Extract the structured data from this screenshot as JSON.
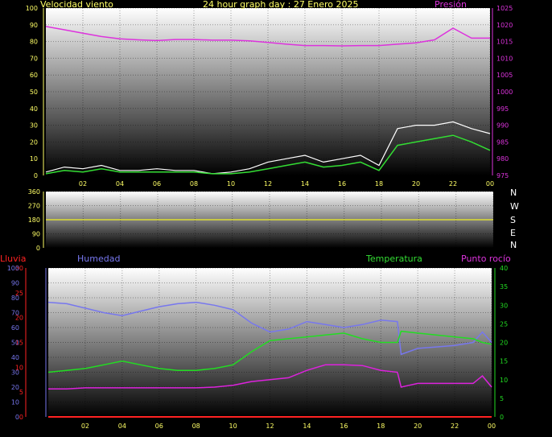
{
  "header": {
    "left_label": "Velocidad viento",
    "title": "24 hour graph day : 27 Enero 2025",
    "right_label": "Presión"
  },
  "compass": [
    "N",
    "W",
    "S",
    "E",
    "N"
  ],
  "bottom_header": {
    "rain": "Lluvia",
    "humidity": "Humedad",
    "temperature": "Temperatura",
    "dewpoint": "Punto rocío"
  },
  "colors": {
    "wind": "#ffffff",
    "wind_avg": "#33dd33",
    "pressure": "#dd33dd",
    "direction": "#dddd33",
    "humidity": "#7777ee",
    "temperature": "#22dd22",
    "dewpoint": "#dd22dd",
    "rain": "#ff2222",
    "header_text": "#ffff66",
    "grid_dot": "#ffff66"
  },
  "chart_data": [
    {
      "type": "line",
      "title": "24 hour graph day : 27 Enero 2025",
      "x_ticks": [
        "02",
        "04",
        "06",
        "08",
        "10",
        "12",
        "14",
        "16",
        "18",
        "20",
        "22",
        "00"
      ],
      "y_left": {
        "label": "Velocidad viento",
        "min": 0,
        "max": 100,
        "ticks": [
          0,
          10,
          20,
          30,
          40,
          50,
          60,
          70,
          80,
          90,
          100
        ]
      },
      "y_right": {
        "label": "Presión",
        "min": 975,
        "max": 1025,
        "ticks": [
          975,
          980,
          985,
          990,
          995,
          1000,
          1005,
          1010,
          1015,
          1020,
          1025
        ]
      },
      "x_hours": [
        0,
        1,
        2,
        3,
        4,
        5,
        6,
        7,
        8,
        9,
        10,
        11,
        12,
        13,
        14,
        15,
        16,
        17,
        18,
        19,
        20,
        21,
        22,
        23,
        24
      ],
      "series": [
        {
          "name": "Velocidad viento",
          "axis": "left",
          "values": [
            2,
            5,
            4,
            6,
            3,
            3,
            4,
            3,
            3,
            1,
            2,
            4,
            8,
            10,
            12,
            8,
            10,
            12,
            6,
            28,
            30,
            30,
            32,
            28,
            25
          ]
        },
        {
          "name": "Velocidad viento media",
          "axis": "left",
          "values": [
            1,
            3,
            2,
            4,
            2,
            2,
            2,
            2,
            2,
            1,
            1,
            2,
            4,
            6,
            8,
            5,
            6,
            8,
            3,
            18,
            20,
            22,
            24,
            20,
            15
          ]
        },
        {
          "name": "Presión",
          "axis": "right",
          "values": [
            1019.5,
            1018.5,
            1017.5,
            1016.5,
            1015.8,
            1015.5,
            1015.3,
            1015.6,
            1015.6,
            1015.4,
            1015.4,
            1015.2,
            1014.7,
            1014.2,
            1013.8,
            1013.8,
            1013.7,
            1013.8,
            1013.8,
            1014.2,
            1014.6,
            1015.5,
            1019.0,
            1016.0,
            1016.0
          ]
        }
      ]
    },
    {
      "type": "line",
      "y_left": {
        "min": 0,
        "max": 360,
        "ticks": [
          0,
          90,
          180,
          270,
          360
        ]
      },
      "series": [
        {
          "name": "Dirección viento",
          "values": [
            180,
            180
          ]
        }
      ]
    },
    {
      "type": "line",
      "x_ticks": [
        "02",
        "04",
        "06",
        "08",
        "10",
        "12",
        "14",
        "16",
        "18",
        "20",
        "22",
        "00"
      ],
      "y_rain": {
        "label": "Lluvia",
        "min": 0,
        "max": 30,
        "ticks": [
          0,
          5,
          10,
          15,
          20,
          25,
          30
        ]
      },
      "y_left": {
        "label": "Humedad",
        "min": 0,
        "max": 100,
        "ticks": [
          0,
          10,
          20,
          30,
          40,
          50,
          60,
          70,
          80,
          90,
          100
        ]
      },
      "y_right": {
        "label": "Temperatura / Punto rocío",
        "min": 0,
        "max": 40,
        "ticks": [
          0,
          5,
          10,
          15,
          20,
          25,
          30,
          35,
          40
        ]
      },
      "x_hours": [
        0,
        1,
        2,
        3,
        4,
        5,
        6,
        7,
        8,
        9,
        10,
        11,
        12,
        13,
        14,
        15,
        16,
        17,
        18,
        18.9,
        19.1,
        20,
        21,
        22,
        23,
        23.5,
        24
      ],
      "series": [
        {
          "name": "Humedad",
          "axis": "left",
          "values": [
            77,
            76,
            73,
            70,
            68,
            71,
            74,
            76,
            77,
            75,
            72,
            63,
            57,
            59,
            64,
            62,
            60,
            62,
            65,
            64,
            42,
            46,
            47,
            48,
            50,
            57,
            50
          ]
        },
        {
          "name": "Temperatura",
          "axis": "right",
          "values": [
            12,
            12.5,
            13,
            14,
            15,
            14,
            13,
            12.5,
            12.5,
            13,
            14,
            17.5,
            20.5,
            21,
            21.5,
            22,
            22.5,
            21,
            20,
            20,
            23,
            22.5,
            22,
            21.5,
            21,
            20,
            19.5
          ]
        },
        {
          "name": "Punto rocío",
          "axis": "right",
          "values": [
            7.5,
            7.5,
            7.8,
            7.8,
            7.8,
            7.8,
            7.8,
            7.8,
            7.8,
            8,
            8.5,
            9.5,
            10,
            10.5,
            12.5,
            14,
            14,
            13.8,
            12.5,
            12,
            8,
            9,
            9,
            9,
            9,
            11,
            8
          ]
        },
        {
          "name": "Lluvia",
          "axis": "rain",
          "values": [
            0,
            0,
            0,
            0,
            0,
            0,
            0,
            0,
            0,
            0,
            0,
            0,
            0,
            0,
            0,
            0,
            0,
            0,
            0,
            0,
            0,
            0,
            0,
            0,
            0,
            0,
            0
          ]
        }
      ]
    }
  ]
}
